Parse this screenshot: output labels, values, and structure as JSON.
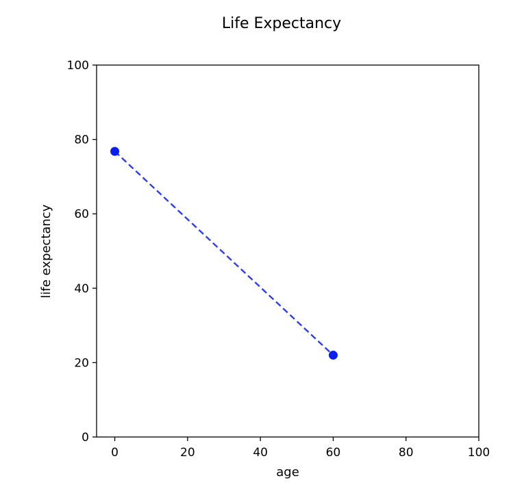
{
  "chart_data": {
    "type": "line",
    "title": "Life Expectancy",
    "xlabel": "age",
    "ylabel": "life expectancy",
    "xlim": [
      -5,
      100
    ],
    "ylim": [
      0,
      100
    ],
    "x_ticks": [
      0,
      20,
      40,
      60,
      80,
      100
    ],
    "y_ticks": [
      0,
      20,
      40,
      60,
      80,
      100
    ],
    "grid": false,
    "series": [
      {
        "x": [
          0,
          60
        ],
        "y": [
          76.8,
          22
        ],
        "color": "#2b3cf5",
        "marker_color": "#0a1ef0",
        "line_style": "dashed",
        "marker": "circle"
      }
    ]
  }
}
